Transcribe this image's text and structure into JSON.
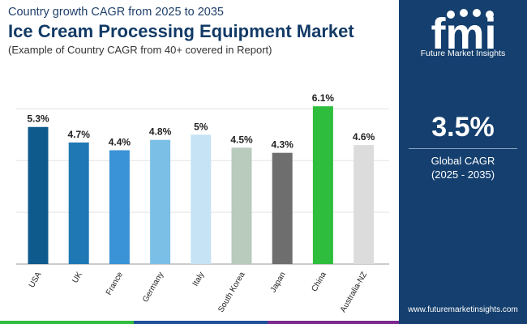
{
  "header": {
    "subtitle": "Country growth CAGR from 2025 to 2035",
    "title": "Ice Cream Processing Equipment Market",
    "note": "(Example of Country CAGR from 40+ covered in Report)"
  },
  "sidebar": {
    "logo_text": "fmi",
    "brand": "Future Market Insights",
    "stat_value": "3.5%",
    "stat_label": "Global CAGR",
    "stat_period": "(2025 - 2035)",
    "website": "www.futuremarketinsights.com"
  },
  "chart_data": {
    "type": "bar",
    "categories": [
      "USA",
      "UK",
      "France",
      "Germany",
      "Italy",
      "South Korea",
      "Japan",
      "China",
      "Australia-NZ"
    ],
    "values": [
      5.3,
      4.7,
      4.4,
      4.8,
      5,
      4.5,
      4.3,
      6.1,
      4.6
    ],
    "labels": [
      "5.3%",
      "4.7%",
      "4.4%",
      "4.8%",
      "5%",
      "4.5%",
      "4.3%",
      "6.1%",
      "4.6%"
    ],
    "colors": [
      "#0f5a8c",
      "#1f78b4",
      "#3a93d6",
      "#7bbfe6",
      "#c5e3f5",
      "#b8cbbd",
      "#6e6e6e",
      "#2ebd3c",
      "#dcdcdc"
    ],
    "ylim": [
      0,
      6.2
    ],
    "grid": true,
    "xlabel": "",
    "ylabel": ""
  },
  "footer_colors": [
    "#2ebd3c",
    "#1f4f99",
    "#7a2a8c"
  ]
}
